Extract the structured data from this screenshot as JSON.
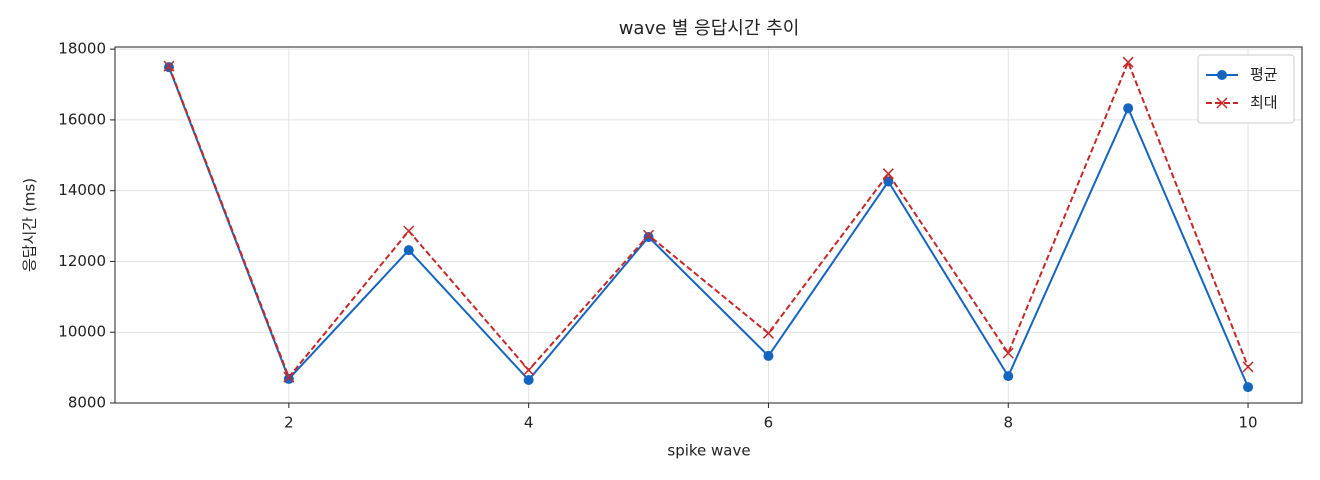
{
  "chart_data": {
    "type": "line",
    "title": "wave 별 응답시간 추이",
    "xlabel": "spike wave",
    "ylabel": "응답시간 (ms)",
    "x": [
      1,
      2,
      3,
      4,
      5,
      6,
      7,
      8,
      9,
      10
    ],
    "series": [
      {
        "name": "평균",
        "color": "#1565c0",
        "marker": "circle",
        "dash": "solid",
        "values": [
          17490,
          8680,
          12320,
          8650,
          12690,
          9330,
          14260,
          8760,
          16330,
          8450
        ]
      },
      {
        "name": "최대",
        "color": "#c62828",
        "marker": "x",
        "dash": "dashed",
        "values": [
          17520,
          8730,
          12860,
          8930,
          12740,
          9970,
          14480,
          9410,
          17630,
          9020
        ]
      }
    ],
    "xlim": [
      0.55,
      10.45
    ],
    "xticks": [
      2,
      4,
      6,
      8,
      10
    ],
    "ylim": [
      8000,
      18060
    ],
    "yticks": [
      8000,
      10000,
      12000,
      14000,
      16000,
      18000
    ],
    "grid": true,
    "legend": "upper right"
  }
}
